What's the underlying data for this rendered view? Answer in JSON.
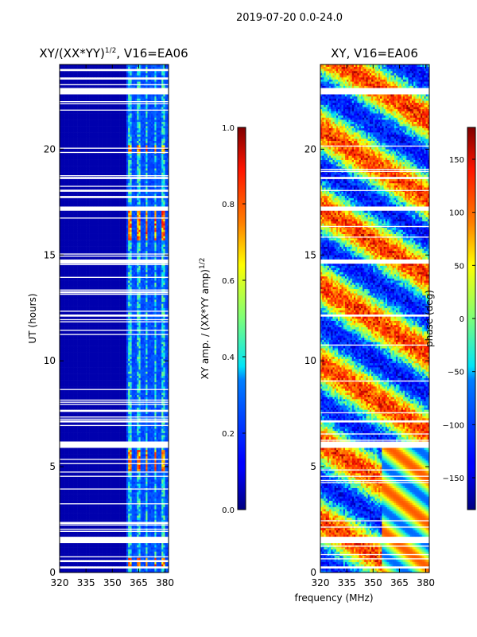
{
  "figure_title": "2019-07-20 0.0-24.0",
  "colors": {
    "no_data": "#ffffff"
  },
  "chart_data": [
    {
      "type": "heatmap",
      "title": "XY/(XX*YY)",
      "title_superscript": "1/2",
      "title_suffix": ", V16=EA06",
      "xlabel": "",
      "ylabel": "UT (hours)",
      "xlim": [
        320,
        382
      ],
      "ylim": [
        0,
        24
      ],
      "xticks": [
        320,
        335,
        350,
        365,
        380
      ],
      "yticks": [
        0,
        5,
        10,
        15,
        20
      ],
      "colormap": "jet",
      "colorbar": {
        "label": "XY amp. / (XX*YY amp)",
        "label_superscript": "1/2",
        "range": [
          0.0,
          1.0
        ],
        "ticks": [
          "0.0",
          "0.2",
          "0.4",
          "0.6",
          "0.8",
          "1.0"
        ],
        "tick_values": [
          0.0,
          0.2,
          0.4,
          0.6,
          0.8,
          1.0
        ]
      },
      "bright_channel_bands_mhz": [
        [
          359,
          361.5
        ],
        [
          364,
          366
        ],
        [
          369,
          370.5
        ],
        [
          374,
          375.5
        ],
        [
          378,
          380
        ]
      ],
      "gaps_hours": [
        [
          0.2,
          0.3
        ],
        [
          0.55,
          0.6
        ],
        [
          1.4,
          1.7
        ],
        [
          2.3,
          2.4
        ],
        [
          5.9,
          6.2
        ],
        [
          7.1,
          7.2
        ],
        [
          7.6,
          7.7
        ],
        [
          8.4,
          8.45
        ],
        [
          12.1,
          12.2
        ],
        [
          13.2,
          13.3
        ],
        [
          14.6,
          14.8
        ],
        [
          17.1,
          17.3
        ],
        [
          17.7,
          17.8
        ],
        [
          18.05,
          18.1
        ],
        [
          18.6,
          18.7
        ],
        [
          22.6,
          22.9
        ],
        [
          23.3,
          23.45
        ],
        [
          23.7,
          23.8
        ]
      ],
      "high_amplitude_hours": [
        [
          0.3,
          0.7
        ],
        [
          4.8,
          5.8
        ],
        [
          15.7,
          17.1
        ],
        [
          19.8,
          20.2
        ]
      ]
    },
    {
      "type": "heatmap",
      "title": "XY, V16=EA06",
      "xlabel": "frequency (MHz)",
      "ylabel": "",
      "xlim": [
        320,
        382
      ],
      "ylim": [
        0,
        24
      ],
      "xticks": [
        320,
        335,
        350,
        365,
        380
      ],
      "yticks": [
        0,
        5,
        10,
        15,
        20
      ],
      "colormap": "jet",
      "colorbar": {
        "label": "phase (deg)",
        "range": [
          -180,
          180
        ],
        "ticks": [
          "−150",
          "−100",
          "−50",
          "0",
          "50",
          "100",
          "150"
        ],
        "tick_values": [
          -150,
          -100,
          -50,
          0,
          50,
          100,
          150
        ]
      },
      "gaps_hours": [
        [
          0.2,
          0.3
        ],
        [
          1.4,
          1.7
        ],
        [
          5.9,
          6.2
        ],
        [
          7.1,
          7.2
        ],
        [
          12.1,
          12.2
        ],
        [
          14.6,
          14.8
        ],
        [
          17.1,
          17.3
        ],
        [
          18.6,
          18.7
        ],
        [
          22.6,
          22.9
        ]
      ]
    }
  ]
}
